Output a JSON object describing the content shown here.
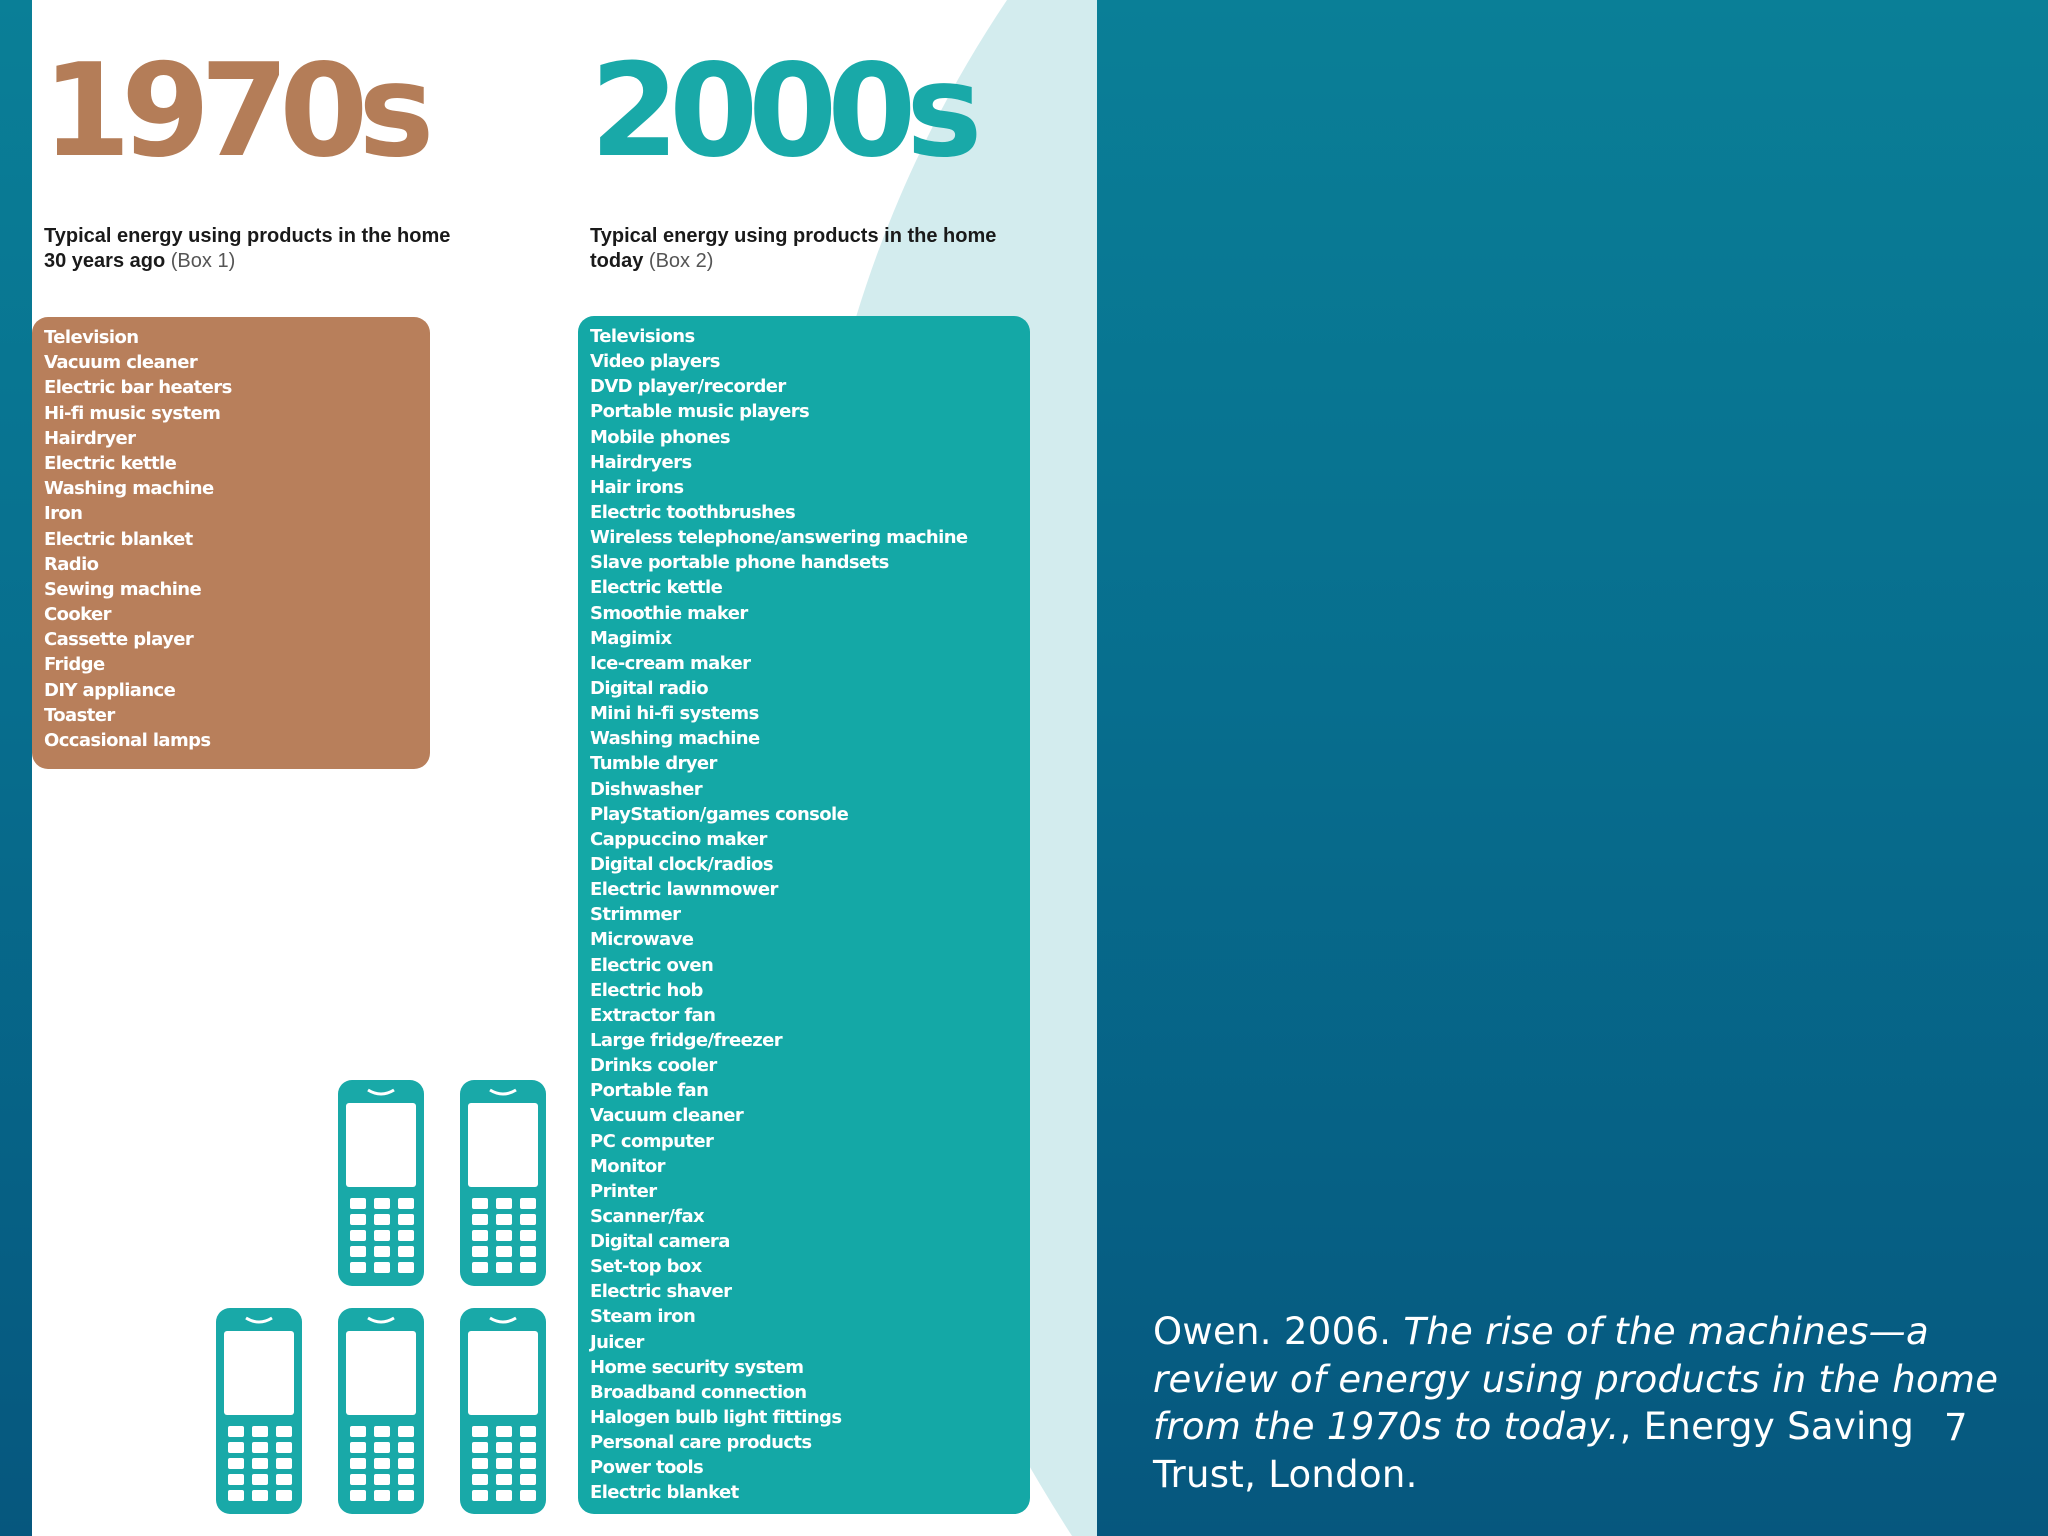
{
  "colors": {
    "background_top": "#0a7f97",
    "background_bottom": "#06577e",
    "brown_accent": "#b47d58",
    "teal_accent": "#19a9a8",
    "light_teal_curve": "#d3ecee"
  },
  "left_column": {
    "decade": "1970s",
    "subtitle_bold": "Typical energy using products in the home 30 years ago",
    "subtitle_box": "(Box 1)",
    "items": [
      "Television",
      "Vacuum cleaner",
      "Electric bar heaters",
      "Hi-fi music system",
      "Hairdryer",
      "Electric kettle",
      "Washing machine",
      "Iron",
      "Electric blanket",
      "Radio",
      "Sewing machine",
      "Cooker",
      "Cassette player",
      "Fridge",
      "DIY appliance",
      "Toaster",
      "Occasional lamps"
    ]
  },
  "right_column": {
    "decade": "2000s",
    "subtitle_bold": "Typical energy using products in the home today",
    "subtitle_box": "(Box 2)",
    "items": [
      "Televisions",
      "Video players",
      "DVD player/recorder",
      "Portable music players",
      "Mobile phones",
      "Hairdryers",
      "Hair irons",
      "Electric toothbrushes",
      "Wireless telephone/answering machine",
      "Slave portable phone handsets",
      "Electric kettle",
      "Smoothie maker",
      "Magimix",
      "Ice-cream maker",
      "Digital radio",
      "Mini hi-fi systems",
      "Washing machine",
      "Tumble dryer",
      "Dishwasher",
      "PlayStation/games console",
      "Cappuccino maker",
      "Digital clock/radios",
      "Electric lawnmower",
      "Strimmer",
      "Microwave",
      "Electric oven",
      "Electric hob",
      "Extractor fan",
      "Large fridge/freezer",
      "Drinks cooler",
      "Portable fan",
      "Vacuum cleaner",
      "PC computer",
      "Monitor",
      "Printer",
      "Scanner/fax",
      "Digital camera",
      "Set-top box",
      "Electric shaver",
      "Steam iron",
      "Juicer",
      "Home security system",
      "Broadband connection",
      "Halogen bulb light fittings",
      "Personal care products",
      "Power tools",
      "Electric blanket"
    ]
  },
  "phones": {
    "icon": "mobile-phone-icon",
    "count": 5
  },
  "citation": {
    "author_year": "Owen. 2006. ",
    "title": "The rise of the machines—a review of energy using products in the home from the 1970s to today.",
    "publisher": ", Energy Saving Trust, London."
  },
  "page_number": "7"
}
